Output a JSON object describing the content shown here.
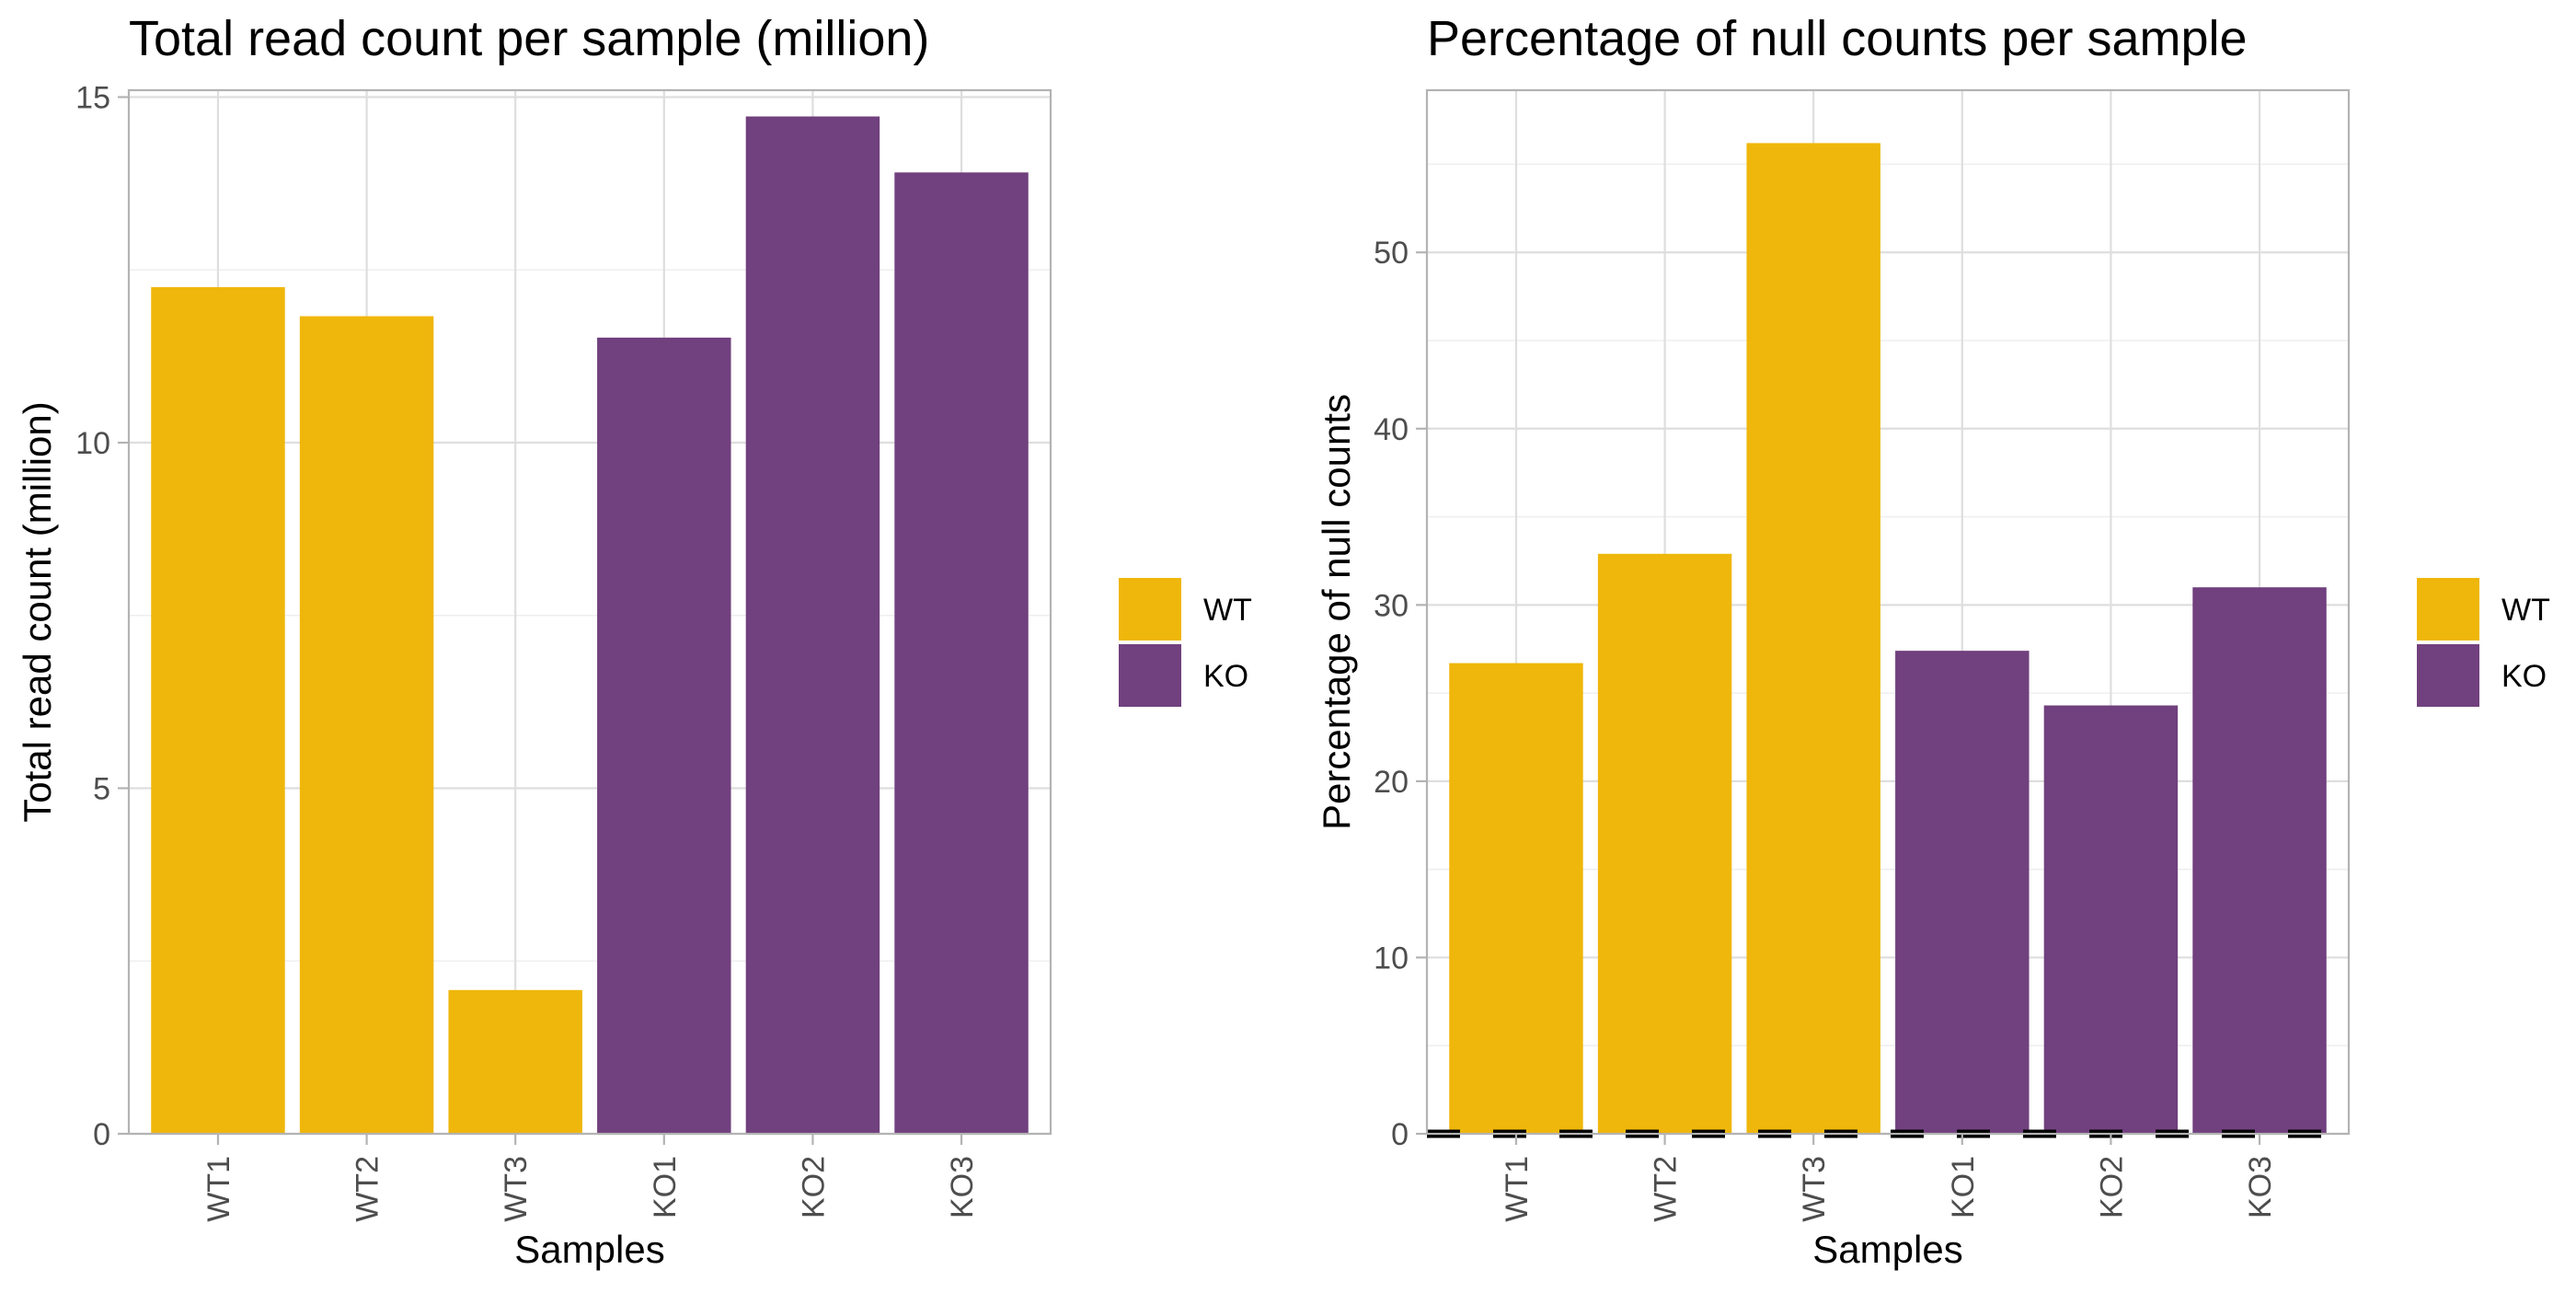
{
  "colors": {
    "WT": "#EFB70B",
    "KO": "#71407E",
    "panel_border": "#B3B3B3",
    "grid_major": "#DEDEDE",
    "grid_minor": "#EFEFEF",
    "text": "#1A1A1A",
    "tick_text": "#4D4D4D",
    "hline": "#000000"
  },
  "chart_data": [
    {
      "type": "bar",
      "title": "Total read count per sample (million)",
      "xlabel": "Samples",
      "ylabel": "Total read count (million)",
      "categories": [
        "WT1",
        "WT2",
        "WT3",
        "KO1",
        "KO2",
        "KO3"
      ],
      "groups": [
        "WT",
        "WT",
        "WT",
        "KO",
        "KO",
        "KO"
      ],
      "values": [
        12.25,
        11.83,
        2.08,
        11.52,
        14.72,
        13.91
      ],
      "ylim": [
        0,
        15.1
      ],
      "yticks": [
        0,
        5,
        10,
        15
      ],
      "grid": true,
      "legend": {
        "position": "right",
        "entries": [
          "WT",
          "KO"
        ]
      }
    },
    {
      "type": "bar",
      "title": "Percentage of null counts per sample",
      "xlabel": "Samples",
      "ylabel": "Percentage of null counts",
      "categories": [
        "WT1",
        "WT2",
        "WT3",
        "KO1",
        "KO2",
        "KO3"
      ],
      "groups": [
        "WT",
        "WT",
        "WT",
        "KO",
        "KO",
        "KO"
      ],
      "values": [
        26.7,
        32.9,
        56.2,
        27.4,
        24.3,
        31.0
      ],
      "ylim": [
        0,
        59.2
      ],
      "yticks": [
        0,
        10,
        20,
        30,
        40,
        50
      ],
      "reference_line": {
        "y": 0,
        "style": "dashed"
      },
      "grid": true,
      "legend": {
        "position": "right",
        "entries": [
          "WT",
          "KO"
        ]
      }
    }
  ]
}
